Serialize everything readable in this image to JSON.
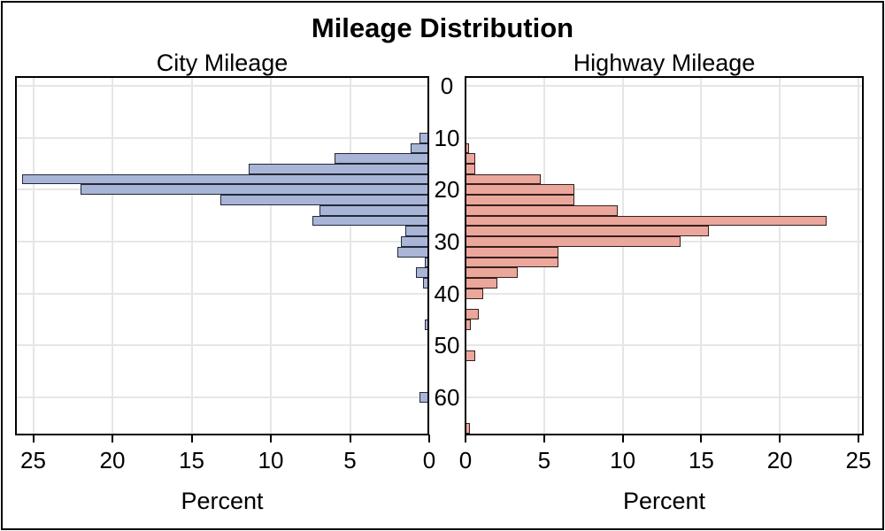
{
  "title": "Mileage Distribution",
  "mileage_axis": {
    "tick_labels": [
      "0",
      "10",
      "20",
      "30",
      "40",
      "50",
      "60"
    ],
    "ticks": [
      0,
      10,
      20,
      30,
      40,
      50,
      60
    ],
    "range": [
      -1.9,
      67.3
    ]
  },
  "chart_data": [
    {
      "type": "bar",
      "orientation": "horizontal",
      "panel": "city",
      "title": "City Mileage",
      "xlabel": "Percent",
      "x_axis_reversed": true,
      "x_ticks": [
        25,
        20,
        15,
        10,
        5,
        0
      ],
      "xlim": [
        0,
        26.1
      ],
      "grid": true,
      "bin_width": 2,
      "bar_fill": "#a8b5d7",
      "bar_outline": "#242938",
      "bins": [
        {
          "midpoint": 10,
          "percent": 0.6
        },
        {
          "midpoint": 12,
          "percent": 1.2
        },
        {
          "midpoint": 14,
          "percent": 6.0
        },
        {
          "midpoint": 16,
          "percent": 11.4
        },
        {
          "midpoint": 18,
          "percent": 25.7
        },
        {
          "midpoint": 20,
          "percent": 22.0
        },
        {
          "midpoint": 22,
          "percent": 13.2
        },
        {
          "midpoint": 24,
          "percent": 6.9
        },
        {
          "midpoint": 26,
          "percent": 7.4
        },
        {
          "midpoint": 28,
          "percent": 1.5
        },
        {
          "midpoint": 30,
          "percent": 1.8
        },
        {
          "midpoint": 32,
          "percent": 2.0
        },
        {
          "midpoint": 34,
          "percent": 0.3
        },
        {
          "midpoint": 36,
          "percent": 0.85
        },
        {
          "midpoint": 38,
          "percent": 0.4
        },
        {
          "midpoint": 46,
          "percent": 0.3
        },
        {
          "midpoint": 60,
          "percent": 0.6
        }
      ]
    },
    {
      "type": "bar",
      "orientation": "horizontal",
      "panel": "highway",
      "title": "Highway Mileage",
      "xlabel": "Percent",
      "x_axis_reversed": false,
      "x_ticks": [
        0,
        5,
        10,
        15,
        20,
        25
      ],
      "xlim": [
        0,
        25.4
      ],
      "grid": true,
      "bin_width": 2,
      "bar_fill": "#eba79b",
      "bar_outline": "#35201c",
      "bins": [
        {
          "midpoint": 12,
          "percent": 0.25
        },
        {
          "midpoint": 14,
          "percent": 0.6
        },
        {
          "midpoint": 16,
          "percent": 0.6
        },
        {
          "midpoint": 18,
          "percent": 4.8
        },
        {
          "midpoint": 20,
          "percent": 6.9
        },
        {
          "midpoint": 22,
          "percent": 6.9
        },
        {
          "midpoint": 24,
          "percent": 9.7
        },
        {
          "midpoint": 26,
          "percent": 23.0
        },
        {
          "midpoint": 28,
          "percent": 15.5
        },
        {
          "midpoint": 30,
          "percent": 13.7
        },
        {
          "midpoint": 32,
          "percent": 5.9
        },
        {
          "midpoint": 34,
          "percent": 5.9
        },
        {
          "midpoint": 36,
          "percent": 3.3
        },
        {
          "midpoint": 38,
          "percent": 2.0
        },
        {
          "midpoint": 40,
          "percent": 1.1
        },
        {
          "midpoint": 44,
          "percent": 0.85
        },
        {
          "midpoint": 46,
          "percent": 0.35
        },
        {
          "midpoint": 52,
          "percent": 0.6
        },
        {
          "midpoint": 66,
          "percent": 0.3
        }
      ]
    }
  ],
  "style": {
    "background": "#ffffff",
    "axis_color": "#000000",
    "gridline_color": "#e6e6e6",
    "text_color": "#000000",
    "frame_border_color": "#000000"
  }
}
